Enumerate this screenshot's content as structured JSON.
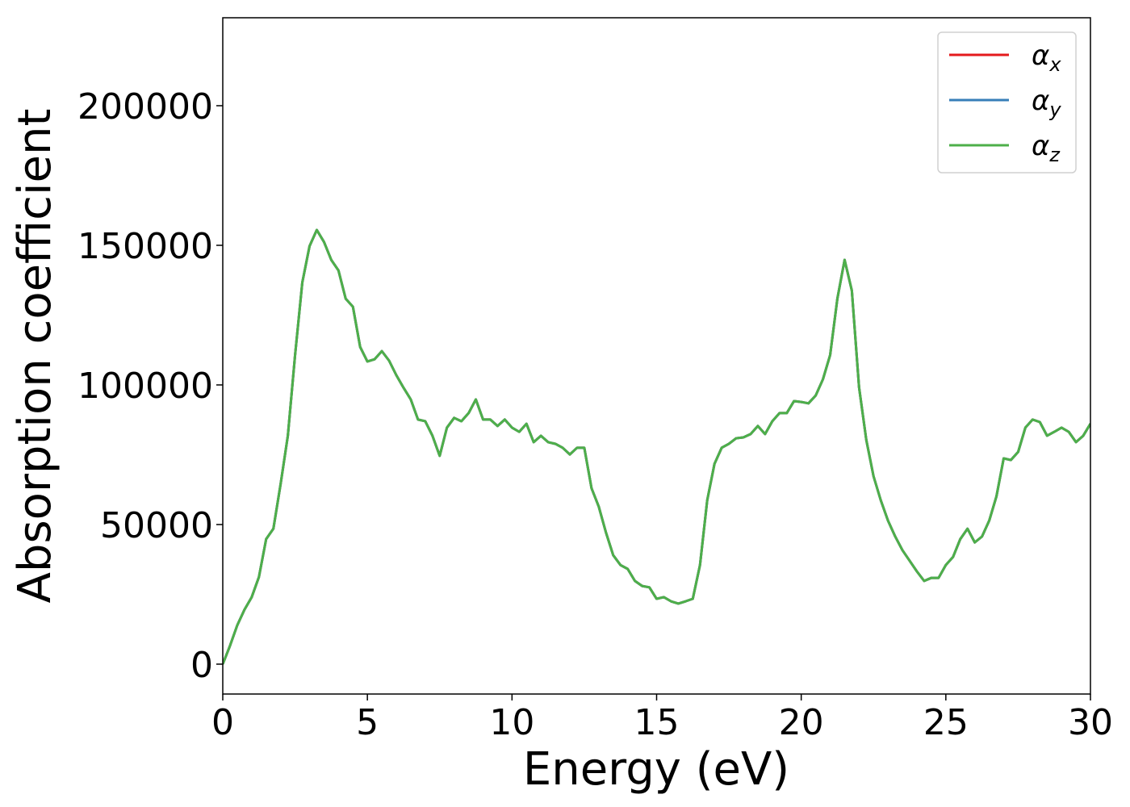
{
  "chart_data": {
    "type": "line",
    "xlabel": "Energy (eV)",
    "ylabel": "Absorption coefficient",
    "x": [
      0,
      0.25,
      0.5,
      0.75,
      1,
      1.25,
      1.5,
      1.75,
      2,
      2.25,
      2.5,
      2.75,
      3,
      3.25,
      3.5,
      3.75,
      4,
      4.25,
      4.5,
      4.75,
      5,
      5.25,
      5.5,
      5.75,
      6,
      6.25,
      6.5,
      6.75,
      7,
      7.25,
      7.5,
      7.75,
      8,
      8.25,
      8.5,
      8.75,
      9,
      9.25,
      9.5,
      9.75,
      10,
      10.25,
      10.5,
      10.75,
      11,
      11.25,
      11.5,
      11.75,
      12,
      12.25,
      12.5,
      12.75,
      13,
      13.25,
      13.5,
      13.75,
      14,
      14.25,
      14.5,
      14.75,
      15,
      15.25,
      15.5,
      15.75,
      16,
      16.25,
      16.5,
      16.75,
      17,
      17.25,
      17.5,
      17.75,
      18,
      18.25,
      18.5,
      18.75,
      19,
      19.25,
      19.5,
      19.75,
      20,
      20.25,
      20.5,
      20.75,
      21,
      21.25,
      21.5,
      21.75,
      22,
      22.25,
      22.5,
      22.75,
      23,
      23.25,
      23.5,
      23.75,
      24,
      24.25,
      24.5,
      24.75,
      25,
      25.25,
      25.5,
      25.75,
      26,
      26.25,
      26.5,
      26.75,
      27,
      27.25,
      27.5,
      27.75,
      28,
      28.25,
      28.5,
      28.75,
      29,
      29.25,
      29.5,
      29.75,
      30
    ],
    "series": [
      {
        "name": "α_x",
        "color": "#e41a1c",
        "values": [
          0,
          6600,
          13900,
          19500,
          24000,
          31200,
          44800,
          48500,
          64500,
          81800,
          110700,
          136700,
          149700,
          155500,
          151200,
          144800,
          141000,
          130900,
          128000,
          113600,
          108400,
          109200,
          112100,
          108700,
          103500,
          99000,
          94800,
          87600,
          87000,
          81800,
          74600,
          84700,
          88200,
          87000,
          89900,
          94800,
          87600,
          87600,
          85300,
          87600,
          84700,
          83200,
          86100,
          79500,
          81800,
          79500,
          78900,
          77500,
          75100,
          77500,
          77500,
          63000,
          56400,
          47100,
          39000,
          35500,
          34100,
          29800,
          28000,
          27500,
          23400,
          24000,
          22500,
          21700,
          22500,
          23400,
          35500,
          58700,
          71700,
          77500,
          78900,
          80900,
          81200,
          82400,
          85300,
          82400,
          87000,
          89900,
          89900,
          94200,
          93900,
          93400,
          96200,
          102000,
          110700,
          130900,
          144800,
          133800,
          99100,
          80300,
          67300,
          58700,
          51400,
          45700,
          40800,
          37000,
          33200,
          29800,
          30900,
          30900,
          35500,
          38400,
          44800,
          48500,
          43600,
          45700,
          51400,
          60100,
          73700,
          73100,
          76000,
          84700,
          87600,
          86700,
          81800,
          83200,
          84700,
          83200,
          79500,
          81800,
          86100
        ]
      },
      {
        "name": "α_y",
        "color": "#377eb8",
        "values": [
          0,
          6600,
          13900,
          19500,
          24000,
          31200,
          44800,
          48500,
          64500,
          81800,
          110700,
          136700,
          149700,
          155500,
          151200,
          144800,
          141000,
          130900,
          128000,
          113600,
          108400,
          109200,
          112100,
          108700,
          103500,
          99000,
          94800,
          87600,
          87000,
          81800,
          74600,
          84700,
          88200,
          87000,
          89900,
          94800,
          87600,
          87600,
          85300,
          87600,
          84700,
          83200,
          86100,
          79500,
          81800,
          79500,
          78900,
          77500,
          75100,
          77500,
          77500,
          63000,
          56400,
          47100,
          39000,
          35500,
          34100,
          29800,
          28000,
          27500,
          23400,
          24000,
          22500,
          21700,
          22500,
          23400,
          35500,
          58700,
          71700,
          77500,
          78900,
          80900,
          81200,
          82400,
          85300,
          82400,
          87000,
          89900,
          89900,
          94200,
          93900,
          93400,
          96200,
          102000,
          110700,
          130900,
          144800,
          133800,
          99100,
          80300,
          67300,
          58700,
          51400,
          45700,
          40800,
          37000,
          33200,
          29800,
          30900,
          30900,
          35500,
          38400,
          44800,
          48500,
          43600,
          45700,
          51400,
          60100,
          73700,
          73100,
          76000,
          84700,
          87600,
          86700,
          81800,
          83200,
          84700,
          83200,
          79500,
          81800,
          86100
        ]
      },
      {
        "name": "α_z",
        "color": "#4daf4a",
        "values": [
          0,
          6600,
          13900,
          19500,
          24000,
          31200,
          44800,
          48500,
          64500,
          81800,
          110700,
          136700,
          149700,
          155500,
          151200,
          144800,
          141000,
          130900,
          128000,
          113600,
          108400,
          109200,
          112100,
          108700,
          103500,
          99000,
          94800,
          87600,
          87000,
          81800,
          74600,
          84700,
          88200,
          87000,
          89900,
          94800,
          87600,
          87600,
          85300,
          87600,
          84700,
          83200,
          86100,
          79500,
          81800,
          79500,
          78900,
          77500,
          75100,
          77500,
          77500,
          63000,
          56400,
          47100,
          39000,
          35500,
          34100,
          29800,
          28000,
          27500,
          23400,
          24000,
          22500,
          21700,
          22500,
          23400,
          35500,
          58700,
          71700,
          77500,
          78900,
          80900,
          81200,
          82400,
          85300,
          82400,
          87000,
          89900,
          89900,
          94200,
          93900,
          93400,
          96200,
          102000,
          110700,
          130900,
          144800,
          133800,
          99100,
          80300,
          67300,
          58700,
          51400,
          45700,
          40800,
          37000,
          33200,
          29800,
          30900,
          30900,
          35500,
          38400,
          44800,
          48500,
          43600,
          45700,
          51400,
          60100,
          73700,
          73100,
          76000,
          84700,
          87600,
          86700,
          81800,
          83200,
          84700,
          83200,
          79500,
          81800,
          86100
        ]
      }
    ],
    "xlim": [
      0,
      30
    ],
    "xticks": [
      0,
      5,
      10,
      15,
      20,
      25,
      30
    ],
    "ylim": [
      -10700,
      231500
    ],
    "yticks": [
      0,
      50000,
      100000,
      150000,
      200000
    ],
    "legend": "upper right"
  }
}
